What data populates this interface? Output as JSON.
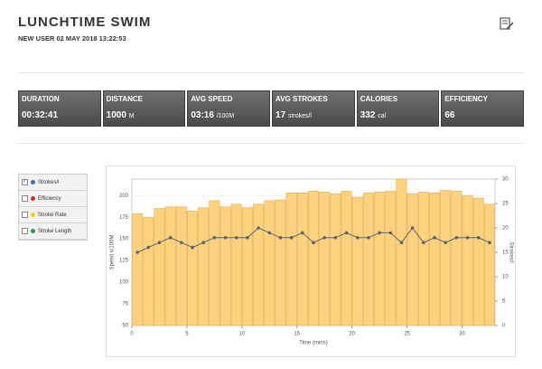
{
  "header": {
    "title": "LUNCHTIME SWIM",
    "subtitle": "NEW USER 02 MAY 2018 13:22:53"
  },
  "stats": [
    {
      "label": "DURATION",
      "value": "00:32:41"
    },
    {
      "label": "DISTANCE",
      "value": "1000",
      "unit": "M"
    },
    {
      "label": "AVG SPEED",
      "value": "03:16",
      "unit": "/100M"
    },
    {
      "label": "AVG STROKES",
      "value": "17",
      "unit": "strokes/l"
    },
    {
      "label": "CALORIES",
      "value": "332",
      "unit": "cal"
    },
    {
      "label": "EFFICIENCY",
      "value": "66"
    }
  ],
  "legend": [
    {
      "label": "Strokes/l",
      "color": "#3a6fc4",
      "checked": true
    },
    {
      "label": "Efficiency",
      "color": "#d62828",
      "checked": false
    },
    {
      "label": "Stroke Rate",
      "color": "#e8d21c",
      "checked": false
    },
    {
      "label": "Stroke Length",
      "color": "#2a9d3a",
      "checked": false
    }
  ],
  "chart_data": {
    "type": "bar-line",
    "x_label": "Time (mins)",
    "y_label": "Speed s/100M",
    "y2_label": "Strokes/l",
    "x": [
      0,
      1,
      2,
      3,
      4,
      5,
      6,
      7,
      8,
      9,
      10,
      11,
      12,
      13,
      14,
      15,
      16,
      17,
      18,
      19,
      20,
      21,
      22,
      23,
      24,
      25,
      26,
      27,
      28,
      29,
      30,
      31,
      32
    ],
    "xlim": [
      0,
      33
    ],
    "xticks": [
      0,
      5,
      10,
      15,
      20,
      25,
      30
    ],
    "ylim": [
      50,
      219
    ],
    "yticks": [
      50,
      75,
      100,
      125,
      150,
      175,
      200
    ],
    "y2lim": [
      0,
      30
    ],
    "y2ticks": [
      0,
      5,
      10,
      15,
      20,
      25,
      30
    ],
    "grid": true,
    "series": [
      {
        "type": "bar",
        "color": "#fcd27e",
        "values": [
          179,
          175,
          185,
          187,
          187,
          182,
          186,
          194,
          187,
          190,
          186,
          190,
          194,
          195,
          203,
          203,
          205,
          204,
          202,
          205,
          198,
          203,
          204,
          205,
          219,
          202,
          204,
          203,
          206,
          205,
          200,
          197,
          190
        ]
      },
      {
        "type": "line",
        "axis": "y2",
        "color": "#5a6470",
        "values": [
          15,
          16,
          17,
          18,
          17,
          16,
          17,
          18,
          18,
          18,
          18,
          20,
          19,
          18,
          18,
          19,
          17,
          18,
          18,
          19,
          18,
          18,
          19,
          19,
          17,
          20,
          17,
          18,
          17,
          18,
          18,
          18,
          17
        ]
      }
    ]
  }
}
